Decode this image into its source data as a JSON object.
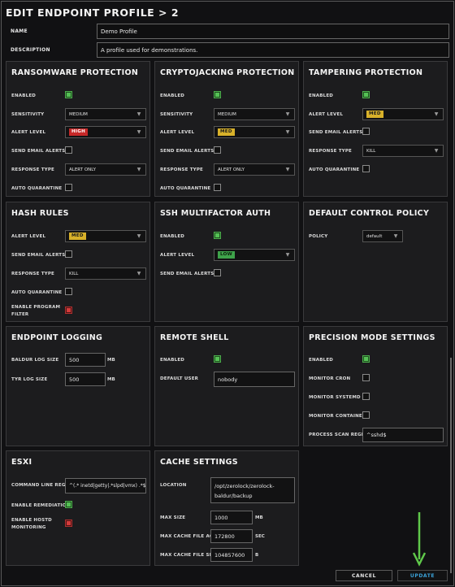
{
  "header": {
    "title": "EDIT ENDPOINT PROFILE  >  2"
  },
  "profile": {
    "name_label": "NAME",
    "name_value": "Demo Profile",
    "description_label": "DESCRIPTION",
    "description_value": "A profile used for demonstrations."
  },
  "ransomware": {
    "title": "RANSOMWARE PROTECTION",
    "enabled_label": "ENABLED",
    "sensitivity_label": "SENSITIVITY",
    "sensitivity_value": "MEDIUM",
    "alert_label": "ALERT LEVEL",
    "alert_value": "HIGH",
    "email_label": "SEND EMAIL ALERTS",
    "response_label": "RESPONSE TYPE",
    "response_value": "ALERT ONLY",
    "quarantine_label": "AUTO QUARANTINE"
  },
  "crypto": {
    "title": "CRYPTOJACKING PROTECTION",
    "enabled_label": "ENABLED",
    "sensitivity_label": "SENSITIVITY",
    "sensitivity_value": "MEDIUM",
    "alert_label": "ALERT LEVEL",
    "alert_value": "MED",
    "email_label": "SEND EMAIL ALERTS",
    "response_label": "RESPONSE TYPE",
    "response_value": "ALERT ONLY",
    "quarantine_label": "AUTO QUARANTINE"
  },
  "tamper": {
    "title": "TAMPERING PROTECTION",
    "enabled_label": "ENABLED",
    "alert_label": "ALERT LEVEL",
    "alert_value": "MED",
    "email_label": "SEND EMAIL ALERTS",
    "response_label": "RESPONSE TYPE",
    "response_value": "KILL",
    "quarantine_label": "AUTO QUARANTINE"
  },
  "hash": {
    "title": "HASH RULES",
    "alert_label": "ALERT LEVEL",
    "alert_value": "MED",
    "email_label": "SEND EMAIL ALERTS",
    "response_label": "RESPONSE TYPE",
    "response_value": "KILL",
    "quarantine_label": "AUTO QUARANTINE",
    "filter_label_1": "ENABLE PROGRAM",
    "filter_label_2": "FILTER"
  },
  "ssh": {
    "title": "SSH MULTIFACTOR AUTH",
    "enabled_label": "ENABLED",
    "alert_label": "ALERT LEVEL",
    "alert_value": "LOW",
    "email_label": "SEND EMAIL ALERTS"
  },
  "policy": {
    "title": "DEFAULT CONTROL POLICY",
    "policy_label": "POLICY",
    "policy_value": "default"
  },
  "logging": {
    "title": "ENDPOINT LOGGING",
    "baldur_label": "BALDUR LOG SIZE",
    "baldur_value": "500",
    "baldur_unit": "MB",
    "tyr_label": "TYR LOG SIZE",
    "tyr_value": "500",
    "tyr_unit": "MB"
  },
  "shell": {
    "title": "REMOTE SHELL",
    "enabled_label": "ENABLED",
    "user_label": "DEFAULT USER",
    "user_value": "nobody"
  },
  "precision": {
    "title": "PRECISION MODE SETTINGS",
    "enabled_label": "ENABLED",
    "cron_label": "MONITOR CRON",
    "systemd_label": "MONITOR SYSTEMD",
    "containerd_label": "MONITOR CONTAINERD",
    "regex_label": "PROCESS SCAN REGEX",
    "regex_value": "^sshd$"
  },
  "esxi": {
    "title": "ESXI",
    "cmd_label": "COMMAND LINE REGEX",
    "cmd_value": "^(.* inetd|getty|.*slpd|vmx) .*$",
    "remediation_label": "ENABLE REMEDIATION",
    "hostd_label_1": "ENABLE HOSTD",
    "hostd_label_2": "MONITORING"
  },
  "cache": {
    "title": "CACHE SETTINGS",
    "location_label": "LOCATION",
    "location_line1": "/opt/zerolock/zerolock-",
    "location_line2": "baldur/backup",
    "size_label": "MAX SIZE",
    "size_value": "1000",
    "size_unit": "MB",
    "age_label": "MAX CACHE FILE AGE",
    "age_value": "172800",
    "age_unit": "SEC",
    "filesize_label": "MAX CACHE FILE SIZE",
    "filesize_value": "104857600",
    "filesize_unit": "B"
  },
  "footer": {
    "cancel_label": "CANCEL",
    "update_label": "UPDATE"
  },
  "icons": {
    "select_chevron": "chevron-down-icon",
    "annotation_arrow": "arrow-down-icon"
  },
  "colors": {
    "high": "#c62828",
    "med": "#d8b12a",
    "low": "#3ea34a",
    "checked": "#55c055",
    "danger_check": "#d33b3b",
    "arrow": "#5fc84a",
    "update_text": "#3aa0d6"
  }
}
